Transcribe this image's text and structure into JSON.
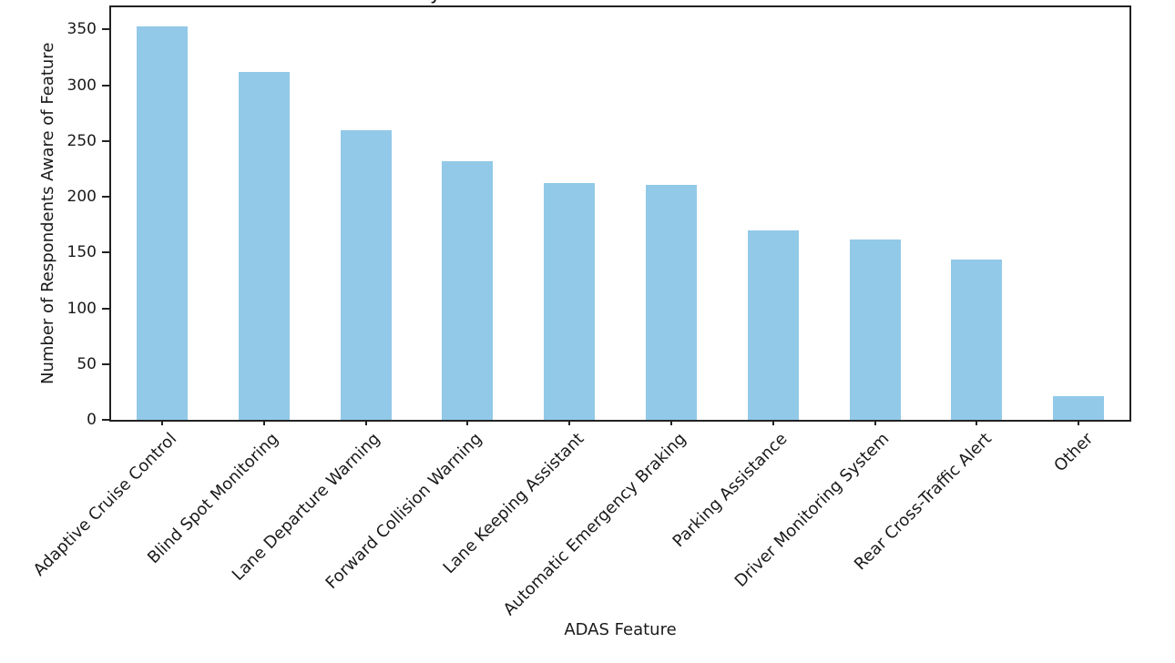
{
  "chart_data": {
    "type": "bar",
    "title_fragment": "y",
    "xlabel": "ADAS Feature",
    "ylabel": "Number of Respondents Aware of Feature",
    "categories": [
      "Adaptive Cruise Control",
      "Blind Spot Monitoring",
      "Lane Departure Warning",
      "Forward Collision Warning",
      "Lane Keeping Assistant",
      "Automatic Emergency Braking",
      "Parking Assistance",
      "Driver Monitoring System",
      "Rear Cross-Traffic Alert",
      "Other"
    ],
    "values": [
      353,
      312,
      260,
      232,
      212,
      211,
      170,
      162,
      144,
      21
    ],
    "yticks": [
      0,
      50,
      100,
      150,
      200,
      250,
      300,
      350
    ],
    "ylim": [
      0,
      370
    ],
    "x_tick_label_rotation_deg": 45,
    "grid": false,
    "legend": "none",
    "bar_color": "#92C9E8",
    "axis_color": "#222222",
    "text_color": "#1a1a1a",
    "background_color": "#ffffff"
  }
}
